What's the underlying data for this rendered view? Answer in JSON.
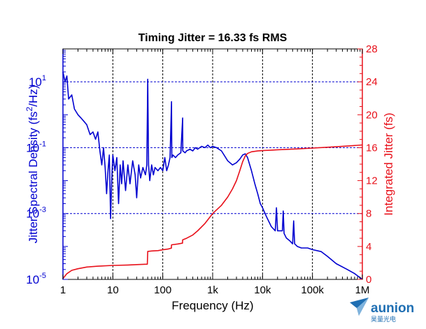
{
  "chart_data": {
    "type": "line",
    "title": "Timing Jitter = 16.33 fs RMS",
    "xlabel": "Frequency (Hz)",
    "ylabel_left_base": "Jitter Spectral Density (fs",
    "ylabel_left_sup": "2",
    "ylabel_left_tail": "/Hz)",
    "ylabel_right": "Integrated Jitter (fs)",
    "x_scale": "log",
    "xlim": [
      1,
      1000000
    ],
    "x_ticks": [
      {
        "value": 1,
        "label": "1"
      },
      {
        "value": 10,
        "label": "10"
      },
      {
        "value": 100,
        "label": "100"
      },
      {
        "value": 1000,
        "label": "1k"
      },
      {
        "value": 10000,
        "label": "10k"
      },
      {
        "value": 100000,
        "label": "100k"
      },
      {
        "value": 1000000,
        "label": "1M"
      }
    ],
    "y_left_scale": "log",
    "y_left_lim": [
      1e-05,
      100
    ],
    "y_left_ticks": [
      {
        "value": 10,
        "base": "10",
        "exp": "1"
      },
      {
        "value": 0.1,
        "base": "10",
        "exp": "-1"
      },
      {
        "value": 0.001,
        "base": "10",
        "exp": "-3"
      },
      {
        "value": 1e-05,
        "base": "10",
        "exp": "-5"
      }
    ],
    "y_right_lim": [
      0,
      28
    ],
    "y_right_ticks": [
      "0",
      "4",
      "8",
      "12",
      "16",
      "20",
      "24",
      "28"
    ],
    "grid": {
      "vertical": "black dashed at decades",
      "horizontal": "blue dashed at 10, 0.1, 0.001"
    },
    "series": [
      {
        "axis": "left",
        "color": "#0000d0",
        "points": [
          [
            1,
            20
          ],
          [
            1.1,
            10
          ],
          [
            1.2,
            15
          ],
          [
            1.3,
            3
          ],
          [
            1.5,
            4
          ],
          [
            1.7,
            1.5
          ],
          [
            2,
            1.0
          ],
          [
            2.3,
            0.8
          ],
          [
            2.7,
            0.6
          ],
          [
            3,
            0.5
          ],
          [
            3.5,
            0.25
          ],
          [
            4,
            0.3
          ],
          [
            4.5,
            0.18
          ],
          [
            5,
            0.3
          ],
          [
            5.5,
            0.08
          ],
          [
            6,
            0.03
          ],
          [
            6.5,
            0.1
          ],
          [
            7,
            0.025
          ],
          [
            7.5,
            0.004
          ],
          [
            8,
            0.02
          ],
          [
            8.5,
            0.06
          ],
          [
            9,
            0.0007
          ],
          [
            9.5,
            0.01
          ],
          [
            10,
            0.06
          ],
          [
            11,
            0.02
          ],
          [
            12,
            0.05
          ],
          [
            13,
            0.002
          ],
          [
            14,
            0.03
          ],
          [
            15,
            0.008
          ],
          [
            16,
            0.04
          ],
          [
            18,
            0.005
          ],
          [
            20,
            0.03
          ],
          [
            22,
            0.008
          ],
          [
            25,
            0.04
          ],
          [
            28,
            0.015
          ],
          [
            30,
            0.003
          ],
          [
            33,
            0.03
          ],
          [
            36,
            0.012
          ],
          [
            40,
            0.025
          ],
          [
            45,
            0.015
          ],
          [
            48,
            0.03
          ],
          [
            50,
            12
          ],
          [
            52,
            0.03
          ],
          [
            55,
            0.01
          ],
          [
            60,
            0.03
          ],
          [
            65,
            0.015
          ],
          [
            70,
            0.025
          ],
          [
            80,
            0.02
          ],
          [
            90,
            0.025
          ],
          [
            100,
            0.02
          ],
          [
            110,
            0.05
          ],
          [
            120,
            0.02
          ],
          [
            130,
            0.03
          ],
          [
            140,
            0.05
          ],
          [
            150,
            2.5
          ],
          [
            152,
            0.05
          ],
          [
            160,
            0.06
          ],
          [
            180,
            0.05
          ],
          [
            200,
            0.06
          ],
          [
            230,
            0.07
          ],
          [
            250,
            0.8
          ],
          [
            252,
            0.08
          ],
          [
            280,
            0.07
          ],
          [
            300,
            0.08
          ],
          [
            350,
            0.09
          ],
          [
            400,
            0.08
          ],
          [
            450,
            0.1
          ],
          [
            500,
            0.09
          ],
          [
            600,
            0.11
          ],
          [
            700,
            0.1
          ],
          [
            800,
            0.12
          ],
          [
            900,
            0.1
          ],
          [
            1000,
            0.11
          ],
          [
            1200,
            0.1
          ],
          [
            1500,
            0.08
          ],
          [
            2000,
            0.04
          ],
          [
            2500,
            0.03
          ],
          [
            3000,
            0.035
          ],
          [
            3500,
            0.045
          ],
          [
            4000,
            0.06
          ],
          [
            4500,
            0.065
          ],
          [
            5000,
            0.05
          ],
          [
            6000,
            0.02
          ],
          [
            7000,
            0.008
          ],
          [
            8000,
            0.004
          ],
          [
            9000,
            0.002
          ],
          [
            10000,
            0.0015
          ],
          [
            12000,
            0.0008
          ],
          [
            15000,
            0.0004
          ],
          [
            18000,
            0.0003
          ],
          [
            19000,
            0.0015
          ],
          [
            20000,
            0.0003
          ],
          [
            25000,
            0.0003
          ],
          [
            26000,
            0.0012
          ],
          [
            27000,
            0.00025
          ],
          [
            30000,
            0.00018
          ],
          [
            35000,
            0.00015
          ],
          [
            40000,
            0.00012
          ],
          [
            42000,
            0.0006
          ],
          [
            44000,
            0.00012
          ],
          [
            50000,
            0.0001
          ],
          [
            60000,
            9e-05
          ],
          [
            80000,
            9e-05
          ],
          [
            100000,
            8e-05
          ],
          [
            150000,
            7e-05
          ],
          [
            200000,
            5e-05
          ],
          [
            300000,
            3e-05
          ],
          [
            500000,
            2e-05
          ],
          [
            700000,
            1.5e-05
          ],
          [
            1000000,
            1e-05
          ]
        ]
      },
      {
        "axis": "right",
        "color": "#e8101a",
        "points": [
          [
            1,
            0.1
          ],
          [
            1.2,
            0.7
          ],
          [
            1.5,
            1.1
          ],
          [
            2,
            1.3
          ],
          [
            3,
            1.5
          ],
          [
            5,
            1.6
          ],
          [
            10,
            1.7
          ],
          [
            20,
            1.75
          ],
          [
            30,
            1.8
          ],
          [
            49,
            1.85
          ],
          [
            50,
            3.4
          ],
          [
            60,
            3.45
          ],
          [
            80,
            3.5
          ],
          [
            100,
            3.6
          ],
          [
            130,
            3.7
          ],
          [
            149,
            3.8
          ],
          [
            150,
            4.2
          ],
          [
            200,
            4.3
          ],
          [
            249,
            4.4
          ],
          [
            250,
            4.8
          ],
          [
            300,
            5.0
          ],
          [
            400,
            5.4
          ],
          [
            500,
            5.9
          ],
          [
            700,
            6.8
          ],
          [
            1000,
            8.0
          ],
          [
            1500,
            9.0
          ],
          [
            2000,
            10.0
          ],
          [
            2500,
            11.0
          ],
          [
            3000,
            12.0
          ],
          [
            3500,
            13.2
          ],
          [
            4000,
            14.3
          ],
          [
            4500,
            15.0
          ],
          [
            5000,
            15.3
          ],
          [
            6000,
            15.5
          ],
          [
            8000,
            15.6
          ],
          [
            10000,
            15.65
          ],
          [
            20000,
            15.75
          ],
          [
            50000,
            15.85
          ],
          [
            100000,
            15.95
          ],
          [
            200000,
            16.05
          ],
          [
            500000,
            16.2
          ],
          [
            1000000,
            16.33
          ]
        ]
      }
    ]
  },
  "logo": {
    "name": "aunion",
    "subtitle": "昊量光电",
    "icon": "paper-plane-icon",
    "color": "#1f6fb3"
  }
}
